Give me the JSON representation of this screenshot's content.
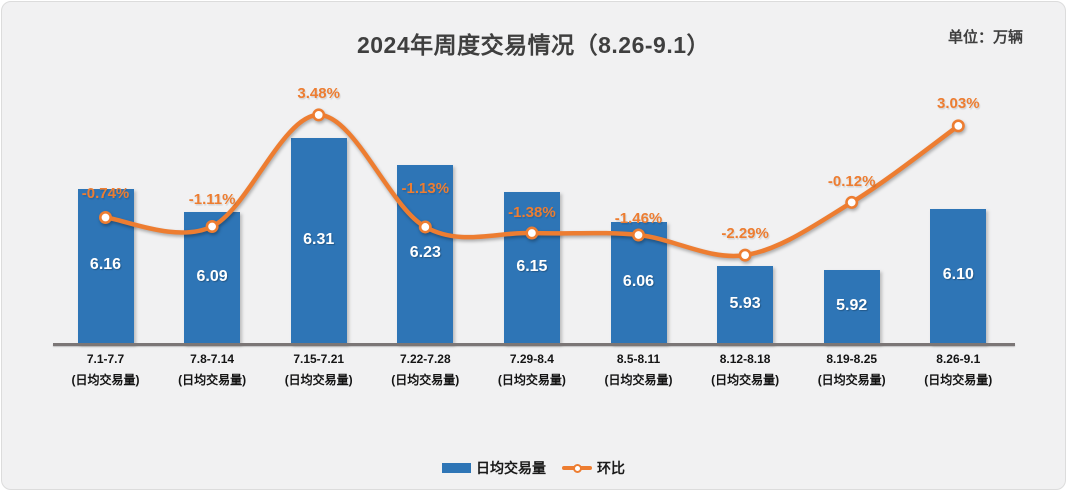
{
  "header": {
    "title": "2024年周度交易情况（8.26-9.1）",
    "unit_label": "单位：万辆"
  },
  "chart_data": {
    "type": "bar",
    "subtype": "bar-line-combo",
    "title": "2024年周度交易情况（8.26-9.1）",
    "unit": "万辆",
    "categories": [
      "7.1-7.7",
      "7.8-7.14",
      "7.15-7.21",
      "7.22-7.28",
      "7.29-8.4",
      "8.5-8.11",
      "8.12-8.18",
      "8.19-8.25",
      "8.26-9.1"
    ],
    "category_sublabel": "(日均交易量)",
    "series": [
      {
        "name": "日均交易量",
        "type": "bar",
        "color": "#2E75B6",
        "values": [
          6.16,
          6.09,
          6.31,
          6.23,
          6.15,
          6.06,
          5.93,
          5.92,
          6.1
        ],
        "labels": [
          "6.16",
          "6.09",
          "6.31",
          "6.23",
          "6.15",
          "6.06",
          "5.93",
          "5.92",
          "6.10"
        ],
        "label_color": "#FFFFFF"
      },
      {
        "name": "环比",
        "type": "line",
        "color": "#ED7D31",
        "marker": "circle-white-fill",
        "values": [
          -0.74,
          -1.11,
          3.48,
          -1.13,
          -1.38,
          -1.46,
          -2.29,
          -0.12,
          3.03
        ],
        "labels": [
          "-0.74%",
          "-1.11%",
          "3.48%",
          "-1.13%",
          "-1.38%",
          "-1.46%",
          "-2.29%",
          "-0.12%",
          "3.03%"
        ]
      }
    ],
    "bar_axis_range": [
      5.7,
      6.45
    ],
    "line_axis_range_pct": [
      -5.9,
      4.5
    ],
    "axes_hidden": true,
    "grid": false,
    "legend_position": "bottom"
  },
  "colors": {
    "bar": "#2E75B6",
    "line": "#ED7D31",
    "title_text": "#3F3F3F",
    "axis_line": "#7B7676",
    "background": "#F1F1F2",
    "bar_label_text": "#FFFFFF",
    "pct_label_text": "#ED7D31"
  }
}
